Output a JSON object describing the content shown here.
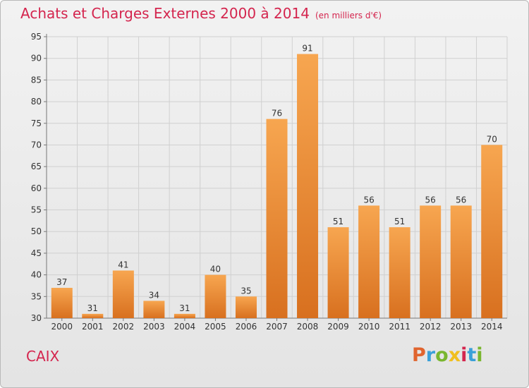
{
  "title": "Achats et Charges Externes 2000 à 2014",
  "subtitle": "(en milliers d'€)",
  "place": "CAIX",
  "logo": {
    "text": "Proxiti",
    "parts": [
      "P",
      "r",
      "o",
      "x",
      "i",
      "t",
      "i"
    ],
    "colors": [
      "#e0642e",
      "#3aa0d8",
      "#79b62f",
      "#f1bf1e",
      "#d4254e",
      "#3aa0d8",
      "#79b62f"
    ]
  },
  "colors": {
    "accent": "#d4254e",
    "bar_top": "#f7a650",
    "bar_bottom": "#d8701f",
    "grid": "#d0d0d0"
  },
  "chart_data": {
    "type": "bar",
    "categories": [
      "2000",
      "2001",
      "2002",
      "2003",
      "2004",
      "2005",
      "2006",
      "2007",
      "2008",
      "2009",
      "2010",
      "2011",
      "2012",
      "2013",
      "2014"
    ],
    "values": [
      37,
      31,
      41,
      34,
      31,
      40,
      35,
      76,
      91,
      51,
      56,
      51,
      56,
      56,
      70
    ],
    "title": "Achats et Charges Externes 2000 à 2014",
    "subtitle": "(en milliers d'€)",
    "xlabel": "",
    "ylabel": "",
    "ylim": [
      30,
      95
    ],
    "yticks": [
      30,
      35,
      40,
      45,
      50,
      55,
      60,
      65,
      70,
      75,
      80,
      85,
      90,
      95
    ],
    "grid": true,
    "data_labels": true,
    "legend": "none"
  }
}
